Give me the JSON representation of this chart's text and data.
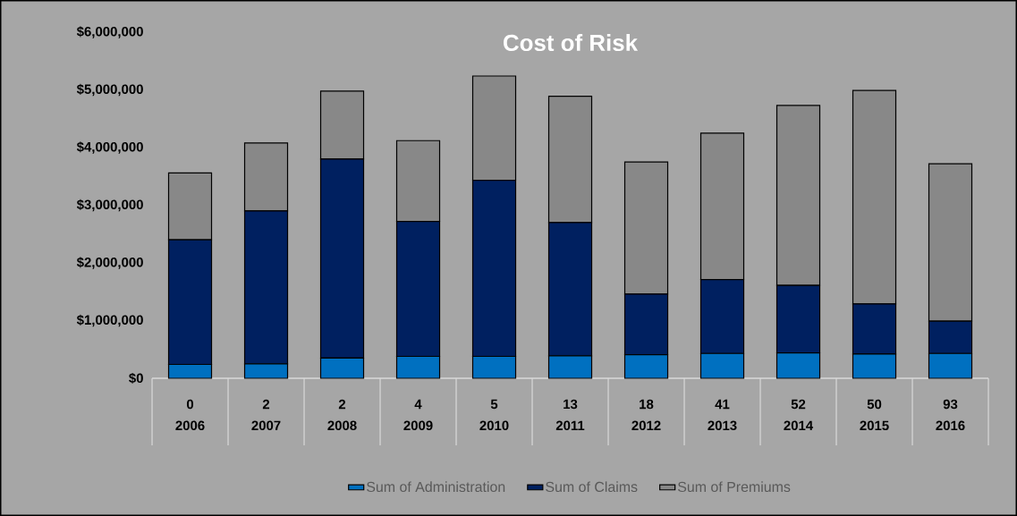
{
  "chart_data": {
    "type": "bar",
    "title": "Cost of Risk",
    "stacked": true,
    "categories": [
      "2006",
      "2007",
      "2008",
      "2009",
      "2010",
      "2011",
      "2012",
      "2013",
      "2014",
      "2015",
      "2016"
    ],
    "annotations": [
      "0",
      "2",
      "2",
      "4",
      "5",
      "13",
      "18",
      "41",
      "52",
      "50",
      "93"
    ],
    "series": [
      {
        "name": "Sum of Administration",
        "color": "#0070c0",
        "values": [
          240000,
          250000,
          350000,
          380000,
          380000,
          390000,
          410000,
          430000,
          440000,
          420000,
          430000
        ]
      },
      {
        "name": "Sum of Claims",
        "color": "#002060",
        "values": [
          2160000,
          2650000,
          3450000,
          2340000,
          3050000,
          2310000,
          1050000,
          1280000,
          1170000,
          870000,
          560000
        ]
      },
      {
        "name": "Sum of Premiums",
        "color": "#888888",
        "values": [
          1160000,
          1180000,
          1180000,
          1400000,
          1810000,
          2190000,
          2290000,
          2540000,
          3120000,
          3700000,
          2730000
        ]
      }
    ],
    "ylim": [
      0,
      6000000
    ],
    "yticks": [
      {
        "value": 0,
        "label": "$0"
      },
      {
        "value": 1000000,
        "label": "$1,000,000"
      },
      {
        "value": 2000000,
        "label": "$2,000,000"
      },
      {
        "value": 3000000,
        "label": "$3,000,000"
      },
      {
        "value": 4000000,
        "label": "$4,000,000"
      },
      {
        "value": 5000000,
        "label": "$5,000,000"
      },
      {
        "value": 6000000,
        "label": "$6,000,000"
      }
    ],
    "grid": false,
    "legend": "bottom"
  }
}
